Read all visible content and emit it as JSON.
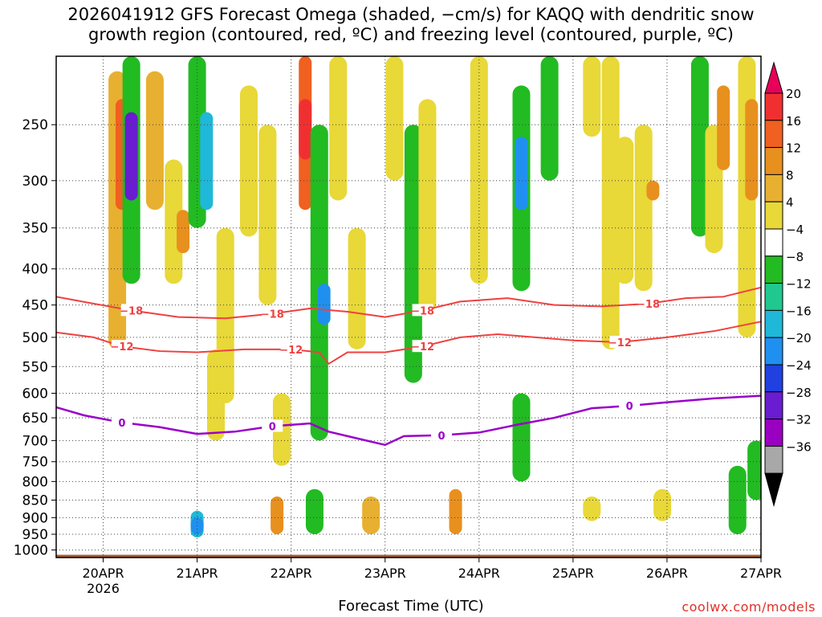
{
  "chart_data": {
    "type": "heatmap",
    "title_line1": "2026041912 GFS Forecast Omega (shaded, −cm/s) for KAQQ with dendritic snow",
    "title_line2": "growth region (contoured, red, ºC) and freezing level (contoured, purple, ºC)",
    "xlabel": "Forecast Time (UTC)",
    "ylabel": "",
    "x_ticks": [
      "20APR",
      "21APR",
      "22APR",
      "23APR",
      "24APR",
      "25APR",
      "26APR",
      "27APR"
    ],
    "x_tick_days": [
      20,
      21,
      22,
      23,
      24,
      25,
      26,
      27
    ],
    "x_range_days": [
      19.5,
      27.0
    ],
    "x_year_label": "2026",
    "y_ticks": [
      250,
      300,
      350,
      400,
      450,
      500,
      550,
      600,
      650,
      700,
      750,
      800,
      850,
      900,
      950,
      1000
    ],
    "y_range_hpa": [
      200,
      1025
    ],
    "colorbar": {
      "ticks": [
        "20",
        "16",
        "12",
        "8",
        "4",
        "−4",
        "−8",
        "−12",
        "−16",
        "−20",
        "−24",
        "−28",
        "−32",
        "−36"
      ],
      "colors": [
        "#e8005a",
        "#f03030",
        "#f06020",
        "#e8901e",
        "#e8b030",
        "#e8d838",
        "#ffffff",
        "#22bb22",
        "#20c890",
        "#20b8d8",
        "#2090f0",
        "#2040e0",
        "#6a1cd0",
        "#9a00c0",
        "#a8a8a8",
        "#000000"
      ]
    },
    "freezing_level": {
      "label": "0",
      "color": "#9a00c8",
      "points": [
        [
          19.5,
          628
        ],
        [
          19.8,
          645
        ],
        [
          20.2,
          660
        ],
        [
          20.6,
          670
        ],
        [
          21.0,
          685
        ],
        [
          21.4,
          680
        ],
        [
          21.8,
          668
        ],
        [
          22.2,
          662
        ],
        [
          22.4,
          680
        ],
        [
          22.7,
          695
        ],
        [
          23.0,
          710
        ],
        [
          23.2,
          690
        ],
        [
          23.6,
          688
        ],
        [
          24.0,
          682
        ],
        [
          24.4,
          665
        ],
        [
          24.8,
          650
        ],
        [
          25.2,
          630
        ],
        [
          25.6,
          625
        ],
        [
          26.0,
          618
        ],
        [
          26.5,
          610
        ],
        [
          27.0,
          605
        ]
      ]
    },
    "dgz_minus12": {
      "label": "−12",
      "color": "#f04040",
      "points": [
        [
          19.5,
          492
        ],
        [
          19.9,
          500
        ],
        [
          20.2,
          515
        ],
        [
          20.6,
          523
        ],
        [
          21.0,
          525
        ],
        [
          21.5,
          520
        ],
        [
          22.0,
          520
        ],
        [
          22.3,
          525
        ],
        [
          22.4,
          545
        ],
        [
          22.6,
          525
        ],
        [
          23.0,
          525
        ],
        [
          23.4,
          515
        ],
        [
          23.8,
          500
        ],
        [
          24.2,
          495
        ],
        [
          24.6,
          500
        ],
        [
          25.0,
          505
        ],
        [
          25.5,
          508
        ],
        [
          26.0,
          500
        ],
        [
          26.5,
          490
        ],
        [
          27.0,
          475
        ]
      ]
    },
    "dgz_minus18": {
      "label": "−18",
      "color": "#f04040",
      "points": [
        [
          19.5,
          438
        ],
        [
          19.9,
          448
        ],
        [
          20.3,
          458
        ],
        [
          20.8,
          468
        ],
        [
          21.3,
          470
        ],
        [
          21.8,
          463
        ],
        [
          22.2,
          455
        ],
        [
          22.6,
          460
        ],
        [
          23.0,
          468
        ],
        [
          23.4,
          458
        ],
        [
          23.8,
          445
        ],
        [
          24.3,
          440
        ],
        [
          24.8,
          450
        ],
        [
          25.3,
          452
        ],
        [
          25.8,
          448
        ],
        [
          26.2,
          440
        ],
        [
          26.6,
          438
        ],
        [
          27.0,
          425
        ]
      ]
    },
    "omega_blobs": [
      {
        "day": 20.15,
        "p_top": 210,
        "p_bot": 520,
        "value": 8
      },
      {
        "day": 20.2,
        "p_top": 230,
        "p_bot": 330,
        "value": 16
      },
      {
        "day": 20.3,
        "p_top": 200,
        "p_bot": 420,
        "value": -8
      },
      {
        "day": 20.3,
        "p_top": 240,
        "p_bot": 320,
        "value": -24
      },
      {
        "day": 20.55,
        "p_top": 210,
        "p_bot": 330,
        "value": 8
      },
      {
        "day": 20.75,
        "p_top": 280,
        "p_bot": 420,
        "value": 4
      },
      {
        "day": 20.85,
        "p_top": 330,
        "p_bot": 380,
        "value": 12
      },
      {
        "day": 21.0,
        "p_top": 200,
        "p_bot": 350,
        "value": -8
      },
      {
        "day": 21.1,
        "p_top": 240,
        "p_bot": 330,
        "value": -12
      },
      {
        "day": 21.3,
        "p_top": 350,
        "p_bot": 620,
        "value": 4
      },
      {
        "day": 21.2,
        "p_top": 520,
        "p_bot": 700,
        "value": 4
      },
      {
        "day": 21.0,
        "p_top": 880,
        "p_bot": 960,
        "value": -12
      },
      {
        "day": 21.0,
        "p_top": 900,
        "p_bot": 950,
        "value": -16
      },
      {
        "day": 21.55,
        "p_top": 220,
        "p_bot": 360,
        "value": 4
      },
      {
        "day": 21.75,
        "p_top": 250,
        "p_bot": 450,
        "value": 4
      },
      {
        "day": 21.9,
        "p_top": 600,
        "p_bot": 760,
        "value": 4
      },
      {
        "day": 22.15,
        "p_top": 200,
        "p_bot": 330,
        "value": 16
      },
      {
        "day": 22.15,
        "p_top": 230,
        "p_bot": 280,
        "value": 20
      },
      {
        "day": 22.3,
        "p_top": 250,
        "p_bot": 700,
        "value": -8
      },
      {
        "day": 22.35,
        "p_top": 420,
        "p_bot": 480,
        "value": -16
      },
      {
        "day": 22.25,
        "p_top": 820,
        "p_bot": 950,
        "value": -8
      },
      {
        "day": 21.85,
        "p_top": 840,
        "p_bot": 950,
        "value": 12
      },
      {
        "day": 22.5,
        "p_top": 200,
        "p_bot": 320,
        "value": 4
      },
      {
        "day": 22.7,
        "p_top": 350,
        "p_bot": 520,
        "value": 4
      },
      {
        "day": 22.85,
        "p_top": 840,
        "p_bot": 950,
        "value": 8
      },
      {
        "day": 23.1,
        "p_top": 200,
        "p_bot": 300,
        "value": 4
      },
      {
        "day": 23.3,
        "p_top": 250,
        "p_bot": 580,
        "value": -8
      },
      {
        "day": 23.45,
        "p_top": 230,
        "p_bot": 460,
        "value": 4
      },
      {
        "day": 23.75,
        "p_top": 820,
        "p_bot": 950,
        "value": 12
      },
      {
        "day": 24.0,
        "p_top": 200,
        "p_bot": 420,
        "value": 4
      },
      {
        "day": 24.45,
        "p_top": 220,
        "p_bot": 430,
        "value": -8
      },
      {
        "day": 24.45,
        "p_top": 260,
        "p_bot": 330,
        "value": -16
      },
      {
        "day": 24.45,
        "p_top": 600,
        "p_bot": 800,
        "value": -8
      },
      {
        "day": 24.75,
        "p_top": 200,
        "p_bot": 300,
        "value": -8
      },
      {
        "day": 25.2,
        "p_top": 200,
        "p_bot": 260,
        "value": 4
      },
      {
        "day": 25.4,
        "p_top": 200,
        "p_bot": 520,
        "value": 4
      },
      {
        "day": 25.55,
        "p_top": 260,
        "p_bot": 420,
        "value": 4
      },
      {
        "day": 25.75,
        "p_top": 250,
        "p_bot": 430,
        "value": 4
      },
      {
        "day": 25.85,
        "p_top": 300,
        "p_bot": 320,
        "value": 12
      },
      {
        "day": 25.2,
        "p_top": 840,
        "p_bot": 910,
        "value": 4
      },
      {
        "day": 25.95,
        "p_top": 820,
        "p_bot": 910,
        "value": 4
      },
      {
        "day": 26.35,
        "p_top": 200,
        "p_bot": 360,
        "value": -8
      },
      {
        "day": 26.5,
        "p_top": 250,
        "p_bot": 380,
        "value": 4
      },
      {
        "day": 26.6,
        "p_top": 220,
        "p_bot": 290,
        "value": 12
      },
      {
        "day": 26.85,
        "p_top": 200,
        "p_bot": 500,
        "value": 4
      },
      {
        "day": 26.75,
        "p_top": 760,
        "p_bot": 950,
        "value": -8
      },
      {
        "day": 26.95,
        "p_top": 700,
        "p_bot": 850,
        "value": -8
      },
      {
        "day": 26.9,
        "p_top": 230,
        "p_bot": 320,
        "value": 12
      }
    ],
    "surface_color": "#a65a2a",
    "credit": "coolwx.com/models"
  }
}
